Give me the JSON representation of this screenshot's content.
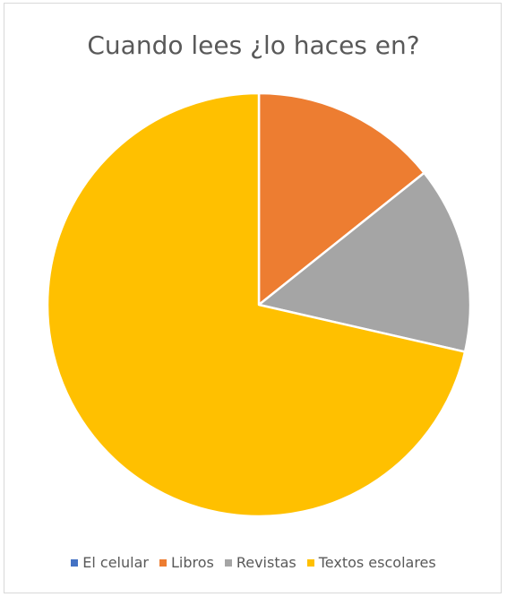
{
  "chart_data": {
    "type": "pie",
    "title": "Cuando lees ¿lo haces en?",
    "categories": [
      "El celular",
      "Libros",
      "Revistas",
      "Textos escolares"
    ],
    "values": [
      0,
      1,
      1,
      5
    ],
    "colors": [
      "#4472c4",
      "#ed7d31",
      "#a5a5a5",
      "#ffc000"
    ],
    "legend_position": "bottom"
  }
}
